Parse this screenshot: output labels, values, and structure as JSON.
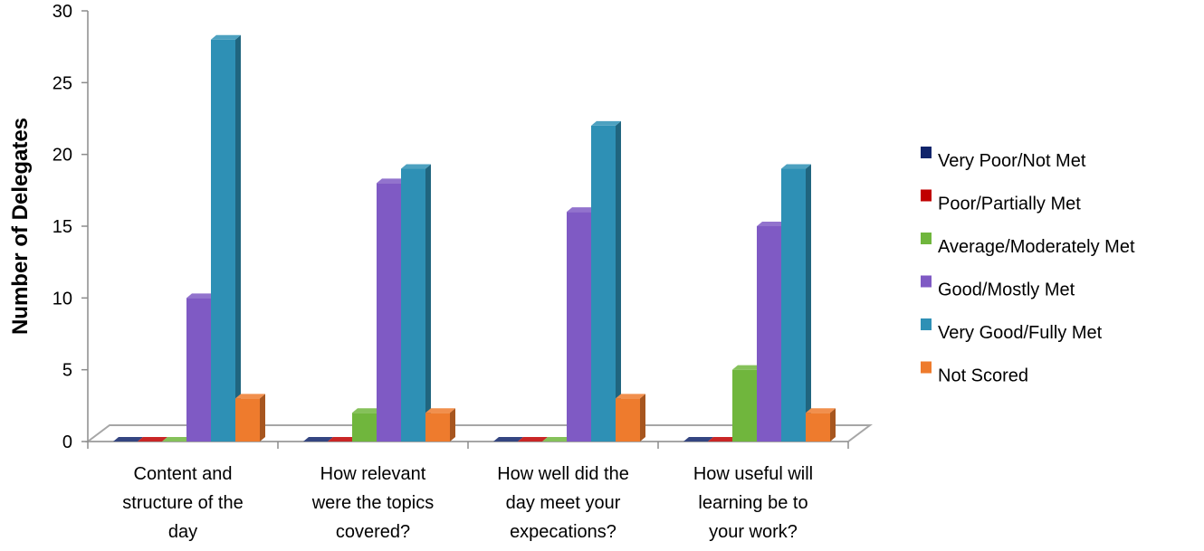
{
  "chart_data": {
    "type": "bar",
    "style": "3d-clustered-column",
    "ylabel": "Number of Delegates",
    "xlabel": "",
    "ylim": [
      0,
      30
    ],
    "yticks": [
      0,
      5,
      10,
      15,
      20,
      25,
      30
    ],
    "grid": false,
    "legend_position": "right",
    "categories": [
      [
        "Content and",
        "structure of the",
        "day"
      ],
      [
        "How relevant",
        "were the topics",
        "covered?"
      ],
      [
        "How well did the",
        "day meet your",
        "expecations?"
      ],
      [
        "How useful will",
        "learning be to",
        "your work?"
      ]
    ],
    "series": [
      {
        "name": "Very Poor/Not Met",
        "color": "#10246b",
        "values": [
          0,
          0,
          0,
          0
        ]
      },
      {
        "name": "Poor/Partially Met",
        "color": "#c00000",
        "values": [
          0,
          0,
          0,
          0
        ]
      },
      {
        "name": "Average/Moderately Met",
        "color": "#70b63d",
        "values": [
          0,
          2,
          0,
          5
        ]
      },
      {
        "name": "Good/Mostly Met",
        "color": "#7f5ac4",
        "values": [
          10,
          18,
          16,
          15
        ]
      },
      {
        "name": "Very Good/Fully Met",
        "color": "#2e90b5",
        "values": [
          28,
          19,
          22,
          19
        ]
      },
      {
        "name": "Not Scored",
        "color": "#ee7b2d",
        "values": [
          3,
          2,
          3,
          2
        ]
      }
    ]
  }
}
